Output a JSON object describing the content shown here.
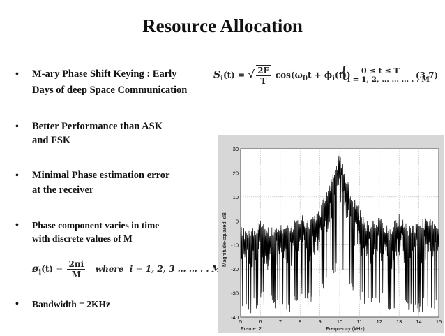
{
  "slide": {
    "title": "Resource Allocation",
    "bullets": [
      {
        "line1": "M-ary  Phase Shift Keying : Early",
        "line2": "Days of deep Space Communication"
      },
      {
        "line1": "Better Performance than ASK",
        "line2": "and FSK"
      },
      {
        "line1": "Minimal Phase estimation error",
        "line2": "at the receiver"
      },
      {
        "line1": "Phase component  varies in time",
        "line2": "with discrete values of M"
      },
      {
        "line1": "Bandwidth = 2KHz",
        "line2": ""
      }
    ],
    "bullet_symbol": "•"
  },
  "equation_main": {
    "lhs": "S",
    "lhs_sub": "i",
    "arg": "(t) =",
    "frac_num": "2E",
    "frac_den": "T",
    "body": "cos(ω",
    "body_sub": "0",
    "body2": "t +  ϕ",
    "body2_sub": "i",
    "body3": "(t))",
    "cond1": "0 ≤ t ≤ T",
    "cond2": "i = 1, 2, … … … . . M",
    "number": "(3.7)"
  },
  "equation_phase": {
    "lhs": "ø",
    "lhs_sub": "i",
    "arg": "(t) =",
    "frac_num": "2πi",
    "frac_den": "M",
    "where": "where",
    "range": "i = 1, 2, 3 … … . . M"
  },
  "chart_data": {
    "type": "line",
    "title": "",
    "xlabel": "Frequency (kHz)",
    "ylabel": "Magnitude-squared, dB",
    "xlim": [
      5,
      15
    ],
    "ylim": [
      -40,
      30
    ],
    "x_ticks": [
      "5",
      "6",
      "7",
      "8",
      "9",
      "10",
      "11",
      "12",
      "13",
      "14",
      "15"
    ],
    "y_ticks": [
      "30",
      "20",
      "10",
      "0",
      "-10",
      "-20",
      "-30",
      "-40"
    ],
    "grid": true,
    "frame_label": "Frame: 2",
    "series": [
      {
        "color": "#000000",
        "x": [
          5,
          5.5,
          6,
          6.5,
          7,
          7.5,
          8,
          8.5,
          9,
          9.5,
          10,
          10.5,
          11,
          11.5,
          12,
          12.5,
          13,
          13.5,
          14,
          14.5,
          15
        ],
        "upper": [
          -2,
          -4,
          0,
          -3,
          0,
          -2,
          3,
          0,
          6,
          16,
          29,
          14,
          5,
          -1,
          2,
          -3,
          3,
          -2,
          0,
          2,
          -1
        ],
        "lower": [
          -38,
          -40,
          -34,
          -37,
          -36,
          -38,
          -32,
          -36,
          -30,
          -26,
          -22,
          -28,
          -34,
          -38,
          -34,
          -38,
          -36,
          -38,
          -40,
          -36,
          -40
        ]
      }
    ]
  }
}
